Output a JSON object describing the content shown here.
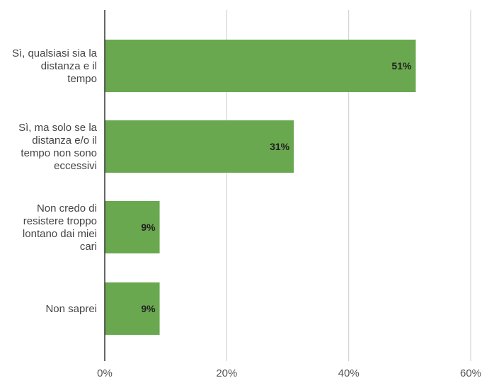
{
  "chart_data": {
    "type": "bar",
    "orientation": "horizontal",
    "categories": [
      "Sì, qualsiasi sia la distanza e il tempo",
      "Sì, ma solo se la distanza e/o il tempo non sono eccessivi",
      "Non credo di resistere troppo lontano dai miei cari",
      "Non saprei"
    ],
    "category_lines": [
      [
        "Sì, qualsiasi sia la",
        "distanza e il",
        "tempo"
      ],
      [
        "Sì, ma solo se la",
        "distanza e/o il",
        "tempo non sono",
        "eccessivi"
      ],
      [
        "Non credo di",
        "resistere troppo",
        "lontano dai miei",
        "cari"
      ],
      [
        "Non saprei"
      ]
    ],
    "values": [
      51,
      31,
      9,
      9
    ],
    "data_labels": [
      "51%",
      "31%",
      "9%",
      "9%"
    ],
    "x_ticks": [
      0,
      20,
      40,
      60
    ],
    "x_tick_labels": [
      "0%",
      "20%",
      "40%",
      "60%"
    ],
    "xlim": [
      0,
      60
    ],
    "grid": true,
    "legend": "none",
    "colors": {
      "bar": "#6aa84f",
      "grid": "#cccccc",
      "axis": "#333333"
    }
  }
}
